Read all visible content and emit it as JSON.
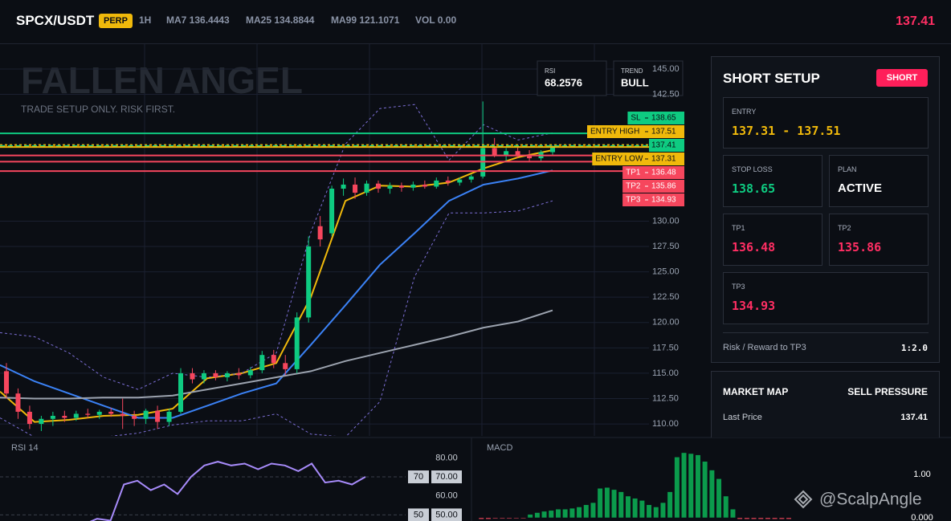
{
  "header": {
    "symbol": "SPCX/USDT",
    "badge": "PERP",
    "interval": "1H",
    "ma7": "MA7 136.4443",
    "ma25": "MA25 134.8844",
    "ma99": "MA99 121.1071",
    "volume": "VOL 0.00",
    "price": "137.41"
  },
  "overlay": {
    "title": "FALLEN ANGEL",
    "subtitle": "TRADE SETUP ONLY. RISK FIRST.",
    "rsi_label": "RSI",
    "rsi_value": "68.2576",
    "trend_label": "TREND",
    "trend_value": "BULL"
  },
  "chart_data": [
    {
      "type": "candlestick",
      "up_color": "#0ecb81",
      "down_color": "#f6465d",
      "grid": true,
      "open": [
        115.2,
        113,
        111.2,
        110,
        110.5,
        110.8,
        110.6,
        111,
        110.9,
        111.2,
        111,
        110.8,
        110.5,
        111.3,
        110.2,
        111.2,
        115,
        114.4,
        115,
        114.6,
        115,
        114.8,
        115.3,
        116.8,
        116,
        115.4,
        120.5,
        129.5,
        128.8,
        133.2,
        133.6,
        132.8,
        133.7,
        133.2,
        133.5,
        133.3,
        133.6,
        133.4,
        134,
        133.8,
        134.1,
        134.4,
        137.2,
        136.5,
        136.9,
        136.4,
        136.2,
        136.8
      ],
      "high": [
        116,
        113.5,
        111.8,
        110.8,
        111.2,
        111.3,
        111.3,
        111.5,
        111.4,
        111.6,
        112.5,
        111.3,
        111.5,
        111.8,
        111.5,
        115.5,
        115.5,
        115.3,
        115.3,
        115.2,
        115.5,
        115.6,
        117.2,
        117.3,
        116.8,
        121,
        128.5,
        130.5,
        133.5,
        134.2,
        134.3,
        134,
        134,
        133.8,
        133.8,
        133.9,
        134,
        134.3,
        134.4,
        134.3,
        134.6,
        141.8,
        138.2,
        137.2,
        137.5,
        137,
        137,
        137.5
      ],
      "low": [
        112.5,
        110.5,
        109.5,
        109.3,
        109.8,
        110.2,
        110.3,
        110.6,
        110.5,
        110.7,
        109.5,
        109.8,
        110,
        109.5,
        109.8,
        111,
        114,
        114,
        114.3,
        114.2,
        114.4,
        114.5,
        115,
        115.5,
        114.8,
        115,
        120,
        127.5,
        128.5,
        132.5,
        132.2,
        132.5,
        132.8,
        132.7,
        132.9,
        133,
        133.2,
        133.2,
        133.5,
        133.5,
        133.8,
        134.2,
        136.3,
        135.8,
        136.2,
        135.9,
        135.9,
        136.5
      ],
      "close": [
        113,
        111.2,
        110,
        110.5,
        110.8,
        110.6,
        111,
        110.9,
        111.2,
        111,
        110.8,
        110.5,
        111.3,
        110.2,
        111.2,
        115,
        114.4,
        115,
        114.6,
        115,
        114.8,
        115.3,
        116.8,
        116,
        115.4,
        120.5,
        127.5,
        128.2,
        133.2,
        133.6,
        132.8,
        133.7,
        133.2,
        133.5,
        133.3,
        133.6,
        133.4,
        134,
        133.8,
        134.1,
        134.4,
        137.2,
        136.5,
        136.9,
        136.4,
        136.2,
        136.8,
        137.41
      ],
      "overlays": [
        {
          "color": "#f0b90b",
          "style": "solid",
          "values": [
            113.2,
            110.2,
            110.4,
            110.8,
            110.9,
            111.5,
            114.5,
            115,
            116,
            122.5,
            132,
            133.5,
            133.4,
            133.8,
            135.2,
            136.3,
            137
          ]
        },
        {
          "color": "#3b82f6",
          "style": "solid",
          "values": [
            115.8,
            114.2,
            113,
            111.8,
            110.6,
            110.6,
            111.8,
            113,
            114,
            117.8,
            121.7,
            125.7,
            128.8,
            132,
            133.6,
            134.2,
            135
          ]
        },
        {
          "color": "#9ca3af",
          "style": "solid",
          "values": [
            112.6,
            112.5,
            112.5,
            112.6,
            112.6,
            112.8,
            113.4,
            114,
            114.6,
            115.2,
            116.2,
            117,
            117.8,
            118.6,
            119.5,
            120.1,
            121.2
          ]
        },
        {
          "color": "#7c6fd6",
          "style": "dotted",
          "values": [
            119,
            118.6,
            117,
            114.6,
            113.4,
            115,
            114.6,
            115,
            117,
            128.9,
            137.6,
            141.1,
            141.5,
            136,
            139.5,
            138,
            138.7
          ]
        },
        {
          "color": "#7c6fd6",
          "style": "dotted",
          "values": [
            110.6,
            108.7,
            108.3,
            108.7,
            109.1,
            109.9,
            110.3,
            110.3,
            111,
            109,
            108.7,
            112.2,
            124.5,
            130.8,
            130.8,
            131,
            132
          ]
        }
      ],
      "levels": [
        {
          "name": "SL",
          "value": 138.65,
          "color": "#0ecb81",
          "text_color": "#0b0e14",
          "style": "solid"
        },
        {
          "name": "ENTRY HIGH",
          "value": 137.51,
          "color": "#f0b90b",
          "text_color": "#0b0e14",
          "style": "dotted"
        },
        {
          "value": 137.41,
          "color": "#0ecb81",
          "text_color": "#0b0e14",
          "style": "dashed"
        },
        {
          "name": "ENTRY LOW",
          "value": 137.31,
          "color": "#f0b90b",
          "text_color": "#0b0e14",
          "style": "solid"
        },
        {
          "name": "TP1",
          "value": 136.48,
          "color": "#f6465d",
          "text_color": "#ffffff",
          "style": "solid"
        },
        {
          "name": "TP2",
          "value": 135.86,
          "color": "#f6465d",
          "text_color": "#ffffff",
          "style": "solid"
        },
        {
          "name": "TP3",
          "value": 134.93,
          "color": "#f6465d",
          "text_color": "#ffffff",
          "style": "solid"
        }
      ],
      "ylim": [
        108.82,
        147.45
      ],
      "yticks": [
        {
          "value": 145,
          "label": "145.00"
        },
        {
          "value": 142.5,
          "label": "142.50"
        },
        {
          "value": 130,
          "label": "130.00"
        },
        {
          "value": 127.5,
          "label": "127.50"
        },
        {
          "value": 125,
          "label": "125.00"
        },
        {
          "value": 122.5,
          "label": "122.50"
        },
        {
          "value": 120,
          "label": "120.00"
        },
        {
          "value": 117.5,
          "label": "117.50"
        },
        {
          "value": 115,
          "label": "115.00"
        },
        {
          "value": 112.5,
          "label": "112.50"
        },
        {
          "value": 110,
          "label": "110.00"
        }
      ]
    },
    {
      "type": "line",
      "title": "RSI 14",
      "color": "#a78bfa",
      "values": [
        null,
        null,
        null,
        null,
        null,
        null,
        45,
        48,
        47,
        66,
        68,
        63,
        66,
        61,
        70,
        76,
        78,
        76,
        77,
        74,
        77,
        76,
        73,
        77,
        67,
        68,
        66,
        70
      ],
      "ylim": [
        46.8,
        90.7
      ],
      "yticks": [
        {
          "value": 80,
          "label": "80.00"
        },
        {
          "value": 70,
          "label": "70.00"
        },
        {
          "value": 60,
          "label": "60.00"
        },
        {
          "value": 50,
          "label": "50.00"
        }
      ],
      "levels": [
        70,
        50
      ]
    },
    {
      "type": "bar",
      "title": "MACD",
      "up_color": "#0b9b4c",
      "down_color": "#f6465d",
      "values": [
        -0.03,
        -0.03,
        -0.02,
        -0.02,
        -0.02,
        -0.01,
        -0.01,
        0.08,
        0.12,
        0.15,
        0.17,
        0.2,
        0.2,
        0.22,
        0.25,
        0.3,
        0.35,
        0.68,
        0.7,
        0.65,
        0.6,
        0.5,
        0.45,
        0.4,
        0.3,
        0.25,
        0.35,
        0.6,
        1.4,
        1.5,
        1.48,
        1.45,
        1.3,
        1.1,
        0.9,
        0.5,
        0.2,
        -0.03,
        -0.03,
        -0.03,
        -0.03,
        -0.03,
        -0.03,
        -0.03,
        -0.03
      ],
      "ylim": [
        -0.074,
        1.85
      ],
      "yticks": [
        {
          "value": 1,
          "label": "1.00"
        },
        {
          "value": 0,
          "label": "0.000"
        }
      ]
    }
  ],
  "setup_panel": {
    "title": "SHORT SETUP",
    "direction": "SHORT",
    "entry_label": "ENTRY",
    "entry": "137.31 - 137.51",
    "stop_loss_label": "STOP LOSS",
    "stop_loss": "138.65",
    "plan_label": "PLAN",
    "plan": "ACTIVE",
    "tp1_label": "TP1",
    "tp1": "136.48",
    "tp2_label": "TP2",
    "tp2": "135.86",
    "tp3_label": "TP3",
    "tp3": "134.93",
    "risk_reward_label": "Risk / Reward to TP3",
    "risk_reward": "1:2.0"
  },
  "market_map": {
    "title": "MARKET MAP",
    "status": "SELL PRESSURE",
    "last_price_label": "Last Price",
    "last_price": "137.41"
  },
  "watermark": "@ScalpAngle"
}
